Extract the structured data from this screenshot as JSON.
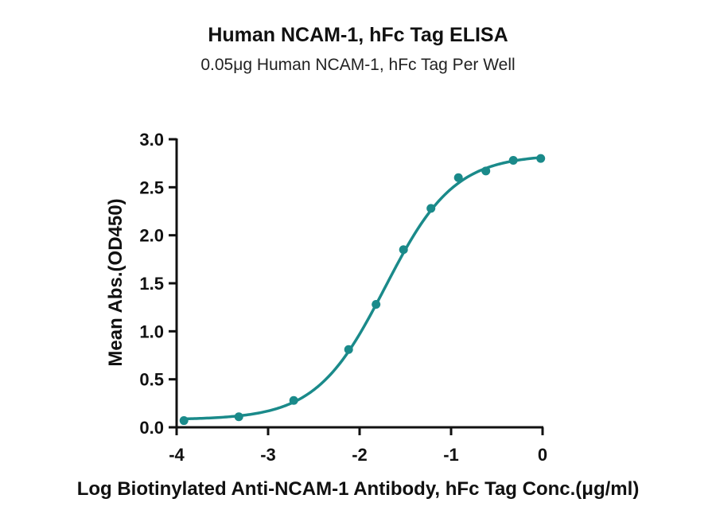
{
  "chart_data": {
    "type": "scatter",
    "title": "Human NCAM-1, hFc Tag ELISA",
    "subtitle": "0.05μg Human NCAM-1, hFc Tag Per Well",
    "xlabel": "Log Biotinylated Anti-NCAM-1 Antibody, hFc Tag Conc.(μg/ml)",
    "ylabel": "Mean Abs.(OD450)",
    "xlim": [
      -4,
      0
    ],
    "ylim": [
      0,
      3.0
    ],
    "xticks": [
      "-4",
      "-3",
      "-2",
      "-1",
      "0"
    ],
    "yticks": [
      "0.0",
      "0.5",
      "1.0",
      "1.5",
      "2.0",
      "2.5",
      "3.0"
    ],
    "color": "#1a8a8a",
    "grid": false,
    "series": [
      {
        "x": [
          -3.92,
          -3.32,
          -2.72,
          -2.12,
          -1.82,
          -1.52,
          -1.22,
          -0.92,
          -0.62,
          -0.32,
          -0.02
        ],
        "y": [
          0.07,
          0.11,
          0.28,
          0.81,
          1.28,
          1.85,
          2.28,
          2.6,
          2.67,
          2.78,
          2.8
        ]
      }
    ],
    "fit": {
      "model": "4PL",
      "bottom": 0.08,
      "top": 2.84,
      "log_ec50": -1.72,
      "hill": 1.15
    }
  }
}
